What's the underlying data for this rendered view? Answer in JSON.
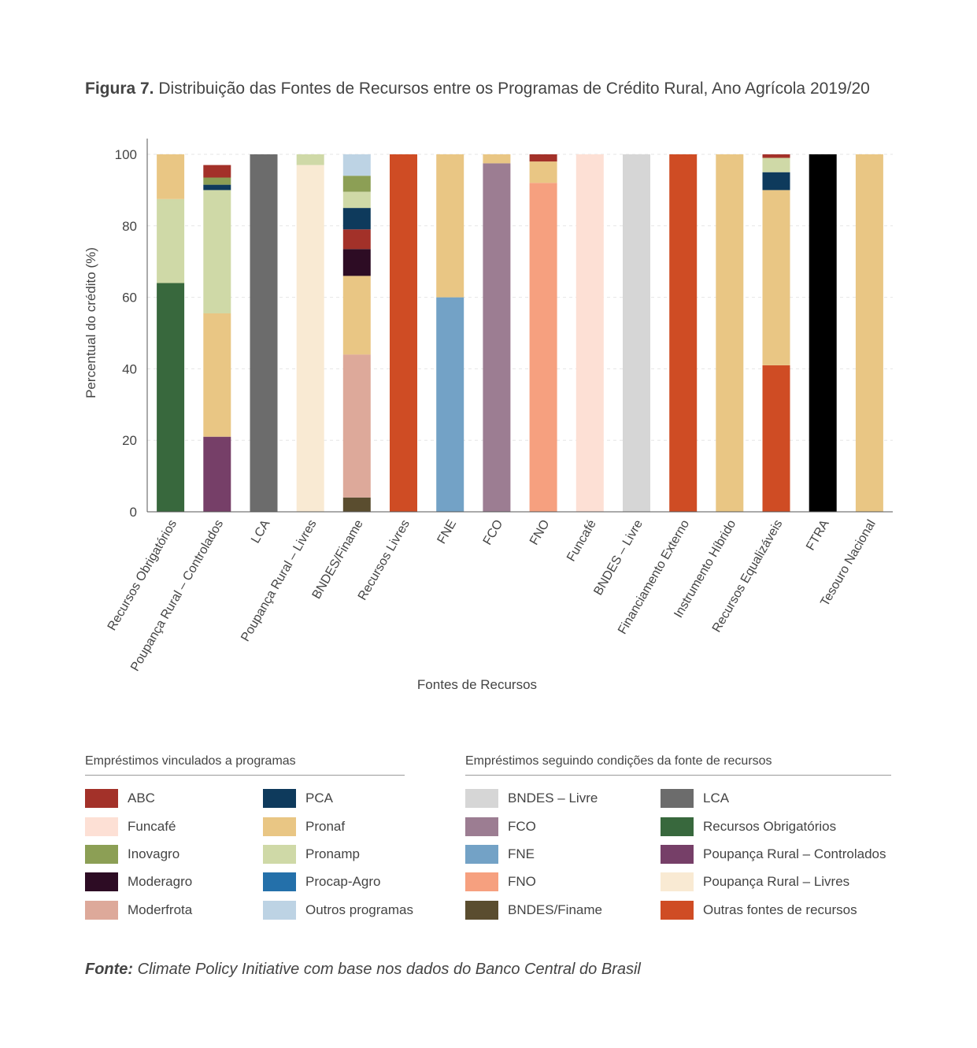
{
  "title": {
    "figure": "Figura 7.",
    "text": "Distribuição das Fontes de Recursos entre os Programas de Crédito Rural, Ano Agrícola 2019/20"
  },
  "colors": {
    "ABC": "#a33129",
    "PCA": "#0e3a5c",
    "Funcafé": "#fde0d5",
    "Pronaf": "#e9c684",
    "Inovagro": "#8c9f55",
    "Pronamp": "#cfd9a7",
    "Moderagro": "#2d0c24",
    "Procap-Agro": "#2470aa",
    "Moderfrota": "#dda99a",
    "Outros programas": "#bdd3e4",
    "BNDES – Livre": "#d6d6d6",
    "LCA": "#6c6c6c",
    "FCO": "#9c7d92",
    "Recursos Obrigatórios": "#38683d",
    "FNE": "#73a2c6",
    "Poupança Rural – Controlados": "#763f68",
    "FNO": "#f6a07f",
    "Poupança Rural – Livres": "#f9ead3",
    "BNDES/Finame": "#5a4d2f",
    "Outras fontes de recursos": "#cf4c24"
  },
  "chart_data": {
    "type": "bar",
    "stacked": true,
    "xlabel": "Fontes de Recursos",
    "ylabel": "Percentual do crédito (%)",
    "ylim": [
      0,
      100
    ],
    "yticks": [
      0,
      20,
      40,
      60,
      80,
      100
    ],
    "grid": "horizontal dashed",
    "categories": [
      "Recursos Obrigatórios",
      "Poupança Rural – Controlados",
      "LCA",
      "Poupança Rural – Livres",
      "BNDES/Finame",
      "Recursos Livres",
      "FNE",
      "FCO",
      "FNO",
      "Funcafé",
      "BNDES – Livre",
      "Financiamento Externo",
      "Instrumento Híbrido",
      "Recursos Equalizáveis",
      "FTRA",
      "Tesouro Nacional"
    ],
    "series": [
      {
        "name": "BNDES/Finame",
        "values": [
          0,
          0,
          0,
          0,
          4,
          0,
          0,
          0,
          0,
          0,
          0,
          0,
          0,
          0,
          0,
          0
        ]
      },
      {
        "name": "Moderfrota",
        "values": [
          0,
          0,
          0,
          0,
          40,
          0,
          0,
          0,
          0,
          0,
          0,
          0,
          0,
          0,
          0,
          0
        ]
      },
      {
        "name": "Recursos Obrigatórios",
        "values": [
          64,
          0,
          0,
          0,
          0,
          0,
          0,
          0,
          0,
          0,
          0,
          0,
          0,
          0,
          0,
          0
        ]
      },
      {
        "name": "Poupança Rural – Controlados",
        "values": [
          0,
          21,
          0,
          0,
          0,
          0,
          0,
          0,
          0,
          0,
          0,
          0,
          0,
          0,
          0,
          0
        ]
      },
      {
        "name": "LCA",
        "values": [
          0,
          0,
          100,
          0,
          0,
          0,
          0,
          0,
          0,
          0,
          0,
          0,
          0,
          0,
          0,
          0
        ]
      },
      {
        "name": "Poupança Rural – Livres",
        "values": [
          0,
          0,
          0,
          97,
          0,
          0,
          0,
          0,
          0,
          0,
          0,
          0,
          0,
          0,
          0,
          0
        ]
      },
      {
        "name": "Outras fontes de recursos",
        "values": [
          0,
          0,
          0,
          0,
          0,
          100,
          0,
          0,
          0,
          0,
          0,
          100,
          0,
          41,
          0,
          0
        ]
      },
      {
        "name": "FNE",
        "values": [
          0,
          0,
          0,
          0,
          0,
          0,
          60,
          0,
          0,
          0,
          0,
          0,
          0,
          0,
          0,
          0
        ]
      },
      {
        "name": "FCO",
        "values": [
          0,
          0,
          0,
          0,
          0,
          0,
          0,
          97.5,
          0,
          0,
          0,
          0,
          0,
          0,
          0,
          0
        ]
      },
      {
        "name": "FNO",
        "values": [
          0,
          0,
          0,
          0,
          0,
          0,
          0,
          0,
          92,
          0,
          0,
          0,
          0,
          0,
          0,
          0
        ]
      },
      {
        "name": "Funcafé",
        "values": [
          0,
          0,
          0,
          0,
          0,
          0,
          0,
          0,
          0,
          100,
          0,
          0,
          0,
          0,
          0,
          0
        ]
      },
      {
        "name": "BNDES – Livre",
        "values": [
          0,
          0,
          0,
          0,
          0,
          0,
          0,
          0,
          0,
          0,
          100,
          0,
          0,
          0,
          0,
          0
        ]
      },
      {
        "name": "FTRA",
        "values": [
          0,
          0,
          0,
          0,
          0,
          0,
          0,
          0,
          0,
          0,
          0,
          0,
          0,
          0,
          100,
          0
        ]
      },
      {
        "name": "Pronaf",
        "values": [
          12.5,
          34.5,
          0,
          0,
          22,
          0,
          40,
          2.5,
          6,
          0,
          0,
          0,
          100,
          49,
          0,
          100
        ]
      },
      {
        "name": "Moderagro",
        "values": [
          0,
          0,
          0,
          0,
          7.5,
          0,
          0,
          0,
          0,
          0,
          0,
          0,
          0,
          0,
          0,
          0
        ]
      },
      {
        "name": "ABC",
        "values": [
          0,
          3.5,
          0,
          0,
          5.5,
          0,
          0,
          0,
          2,
          0,
          0,
          0,
          0,
          1,
          0,
          0
        ]
      },
      {
        "name": "PCA",
        "values": [
          0,
          1.5,
          0,
          0,
          6,
          0,
          0,
          0,
          0,
          0,
          0,
          0,
          0,
          5,
          0,
          0
        ]
      },
      {
        "name": "Pronamp",
        "values": [
          23.5,
          34.5,
          0,
          3,
          4.5,
          0,
          0,
          0,
          0,
          0,
          0,
          0,
          0,
          4,
          0,
          0
        ]
      },
      {
        "name": "Inovagro",
        "values": [
          0,
          2,
          0,
          0,
          4.5,
          0,
          0,
          0,
          0,
          0,
          0,
          0,
          0,
          0,
          0,
          0
        ]
      },
      {
        "name": "Outros programas",
        "values": [
          0,
          0,
          0,
          0,
          6,
          0,
          0,
          0,
          0,
          0,
          0,
          0,
          0,
          0,
          0,
          0
        ]
      }
    ],
    "stack_order_bottom_to_top": [
      [
        "Recursos Obrigatórios",
        "Pronamp",
        "Pronaf"
      ],
      [
        "Poupança Rural – Controlados",
        "Pronaf",
        "Pronamp",
        "PCA",
        "Inovagro",
        "ABC"
      ],
      [
        "LCA"
      ],
      [
        "Poupança Rural – Livres",
        "Pronamp"
      ],
      [
        "BNDES/Finame",
        "Moderfrota",
        "Pronaf",
        "Moderagro",
        "ABC",
        "PCA",
        "Pronamp",
        "Inovagro",
        "Outros programas"
      ],
      [
        "Outras fontes de recursos"
      ],
      [
        "FNE",
        "Pronaf"
      ],
      [
        "FCO",
        "Pronaf"
      ],
      [
        "FNO",
        "Pronaf",
        "ABC"
      ],
      [
        "Funcafé"
      ],
      [
        "BNDES – Livre"
      ],
      [
        "Outras fontes de recursos"
      ],
      [
        "Pronaf"
      ],
      [
        "Outras fontes de recursos",
        "Pronaf",
        "PCA",
        "Pronamp",
        "ABC"
      ],
      [
        "FTRA"
      ],
      [
        "Pronaf"
      ]
    ]
  },
  "legend": {
    "left_header": "Empréstimos vinculados a programas",
    "right_header": "Empréstimos seguindo condições da fonte de recursos",
    "left_col1": [
      "ABC",
      "Funcafé",
      "Inovagro",
      "Moderagro",
      "Moderfrota"
    ],
    "left_col2": [
      "PCA",
      "Pronaf",
      "Pronamp",
      "Procap-Agro",
      "Outros programas"
    ],
    "right_col1": [
      "BNDES – Livre",
      "FCO",
      "FNE",
      "FNO",
      "BNDES/Finame"
    ],
    "right_col2": [
      "LCA",
      "Recursos Obrigatórios",
      "Poupança Rural – Controlados",
      "Poupança Rural – Livres",
      "Outras fontes de recursos"
    ]
  },
  "source": {
    "label": "Fonte:",
    "text": "Climate Policy Initiative com base nos dados do Banco Central do Brasil"
  }
}
